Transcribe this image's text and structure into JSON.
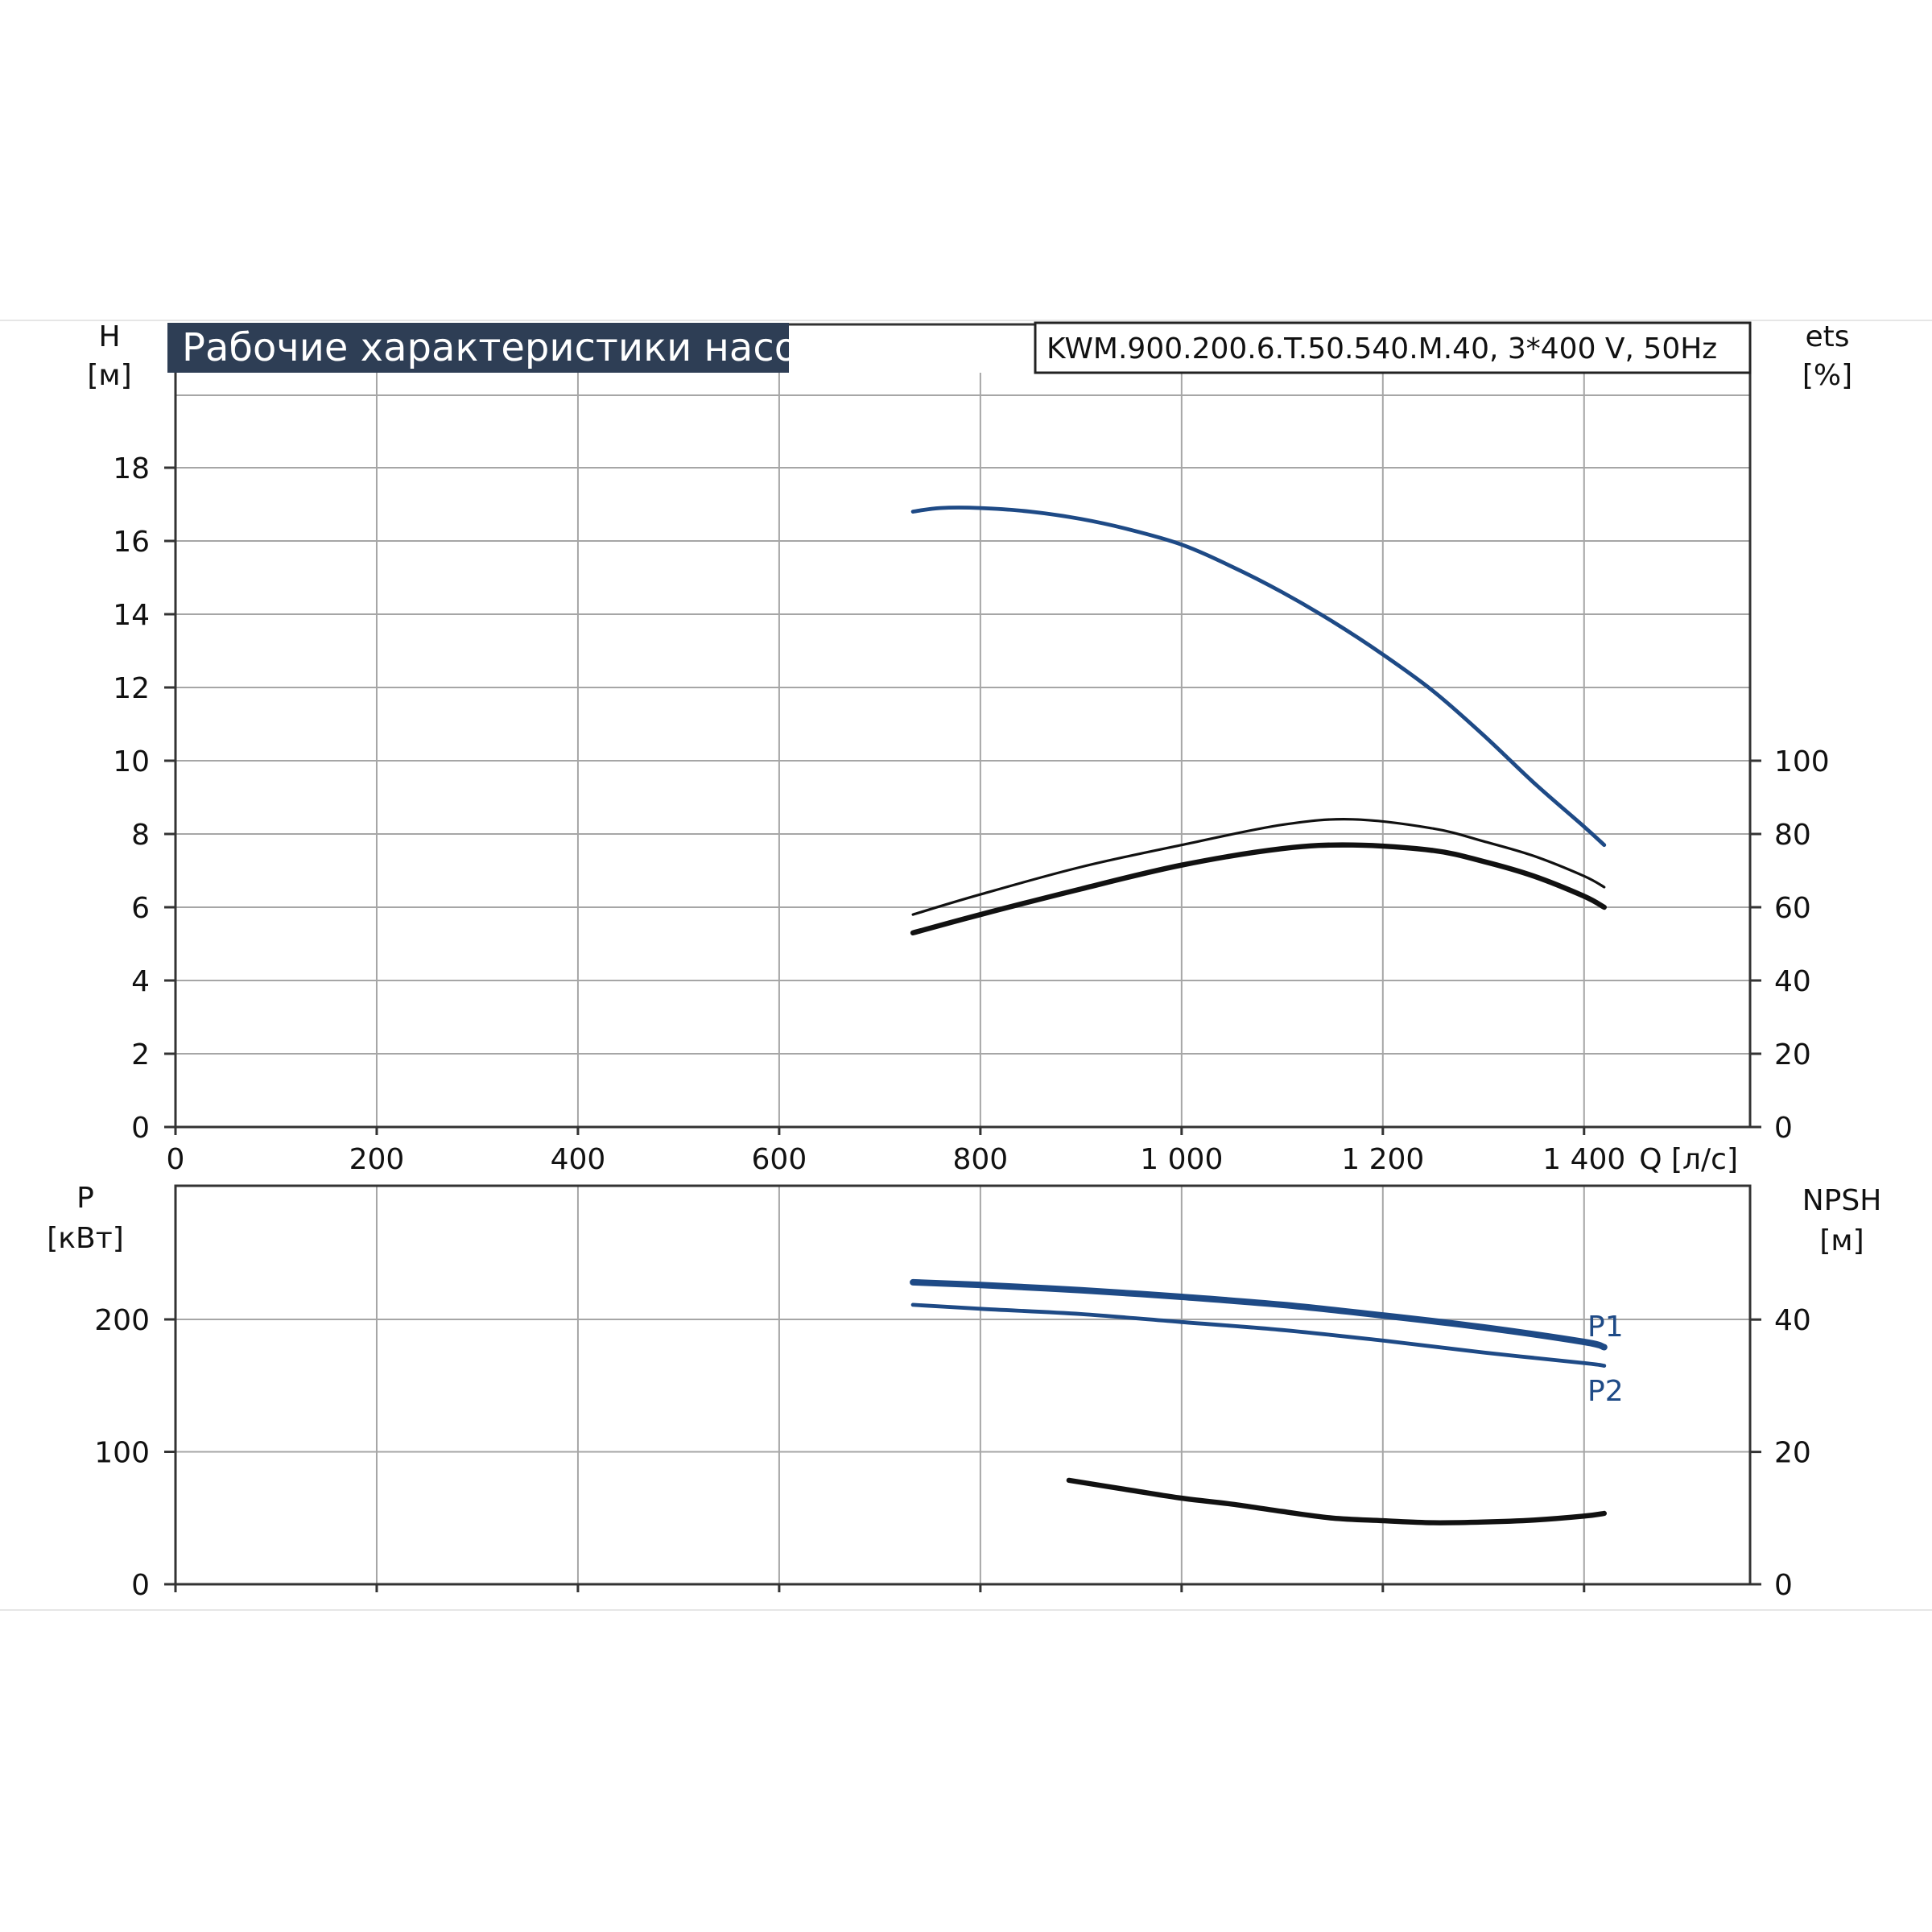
{
  "title": "Рабочие характеристики насоса",
  "model": "KWM.900.200.6.T.50.540.M.40, 3*400 V, 50Hz",
  "colors": {
    "background": "#ffffff",
    "title_bg": "#2e3e55",
    "grid": "#a6a6a6",
    "axis": "#333333",
    "blue": "#1e4a86",
    "black": "#111111"
  },
  "x_axis": {
    "label": "Q [л/с]",
    "min": 0,
    "max": 1400,
    "ticks": [
      0,
      200,
      400,
      600,
      800,
      1000,
      1200,
      1400
    ],
    "tick_labels": [
      "0",
      "200",
      "400",
      "600",
      "800",
      "1 000",
      "1 200",
      "1 400"
    ]
  },
  "top_left_axis": {
    "name": "H",
    "unit": "[м]",
    "ticks": [
      0,
      2,
      4,
      6,
      8,
      10,
      12,
      14,
      16,
      18
    ]
  },
  "top_right_axis": {
    "name": "ets",
    "unit": "[%]",
    "ticks": [
      0,
      20,
      40,
      60,
      80,
      100
    ]
  },
  "bottom_left_axis": {
    "name": "P",
    "unit": "[кВт]",
    "ticks": [
      0,
      100,
      200
    ]
  },
  "bottom_right_axis": {
    "name": "NPSH",
    "unit": "[м]",
    "ticks": [
      0,
      20,
      40
    ]
  },
  "curve_labels": {
    "p1": "P1",
    "p2": "P2"
  },
  "chart_data": [
    {
      "type": "line",
      "panel": "top",
      "xlabel": "Q [л/с]",
      "ylabel": "H [м]",
      "y2label": "ets [%]",
      "xlim": [
        0,
        1400
      ],
      "ylim": [
        0,
        20
      ],
      "y2lim": [
        0,
        135
      ],
      "grid": true,
      "series": [
        {
          "axis": "left",
          "color": "#1e4a86",
          "width": 3,
          "x": [
            733,
            760,
            800,
            850,
            900,
            950,
            1000,
            1050,
            1100,
            1150,
            1200,
            1250,
            1300,
            1350,
            1400,
            1420
          ],
          "y": [
            16.8,
            16.9,
            16.9,
            16.8,
            16.6,
            16.3,
            15.9,
            15.3,
            14.6,
            13.8,
            12.9,
            11.9,
            10.7,
            9.4,
            8.2,
            7.7
          ]
        },
        {
          "axis": "right",
          "color": "#111111",
          "width": 2,
          "x": [
            733,
            800,
            900,
            1000,
            1100,
            1170,
            1250,
            1300,
            1350,
            1400,
            1420
          ],
          "y": [
            58.0,
            63.5,
            71.0,
            77.0,
            82.5,
            84.0,
            81.5,
            78.0,
            74.0,
            68.5,
            65.5
          ]
        },
        {
          "axis": "right",
          "color": "#111111",
          "width": 4,
          "x": [
            733,
            800,
            900,
            1000,
            1100,
            1170,
            1250,
            1300,
            1350,
            1400,
            1420
          ],
          "y": [
            53.0,
            58.0,
            65.0,
            71.5,
            76.0,
            77.0,
            75.5,
            72.5,
            68.5,
            63.0,
            60.0
          ]
        }
      ]
    },
    {
      "type": "line",
      "panel": "bottom",
      "xlabel": "Q [л/с]",
      "ylabel": "P [кВт]",
      "y2label": "NPSH [м]",
      "xlim": [
        0,
        1400
      ],
      "ylim": [
        0,
        300
      ],
      "y2lim": [
        0,
        60
      ],
      "grid": true,
      "series": [
        {
          "name": "P1",
          "axis": "left",
          "color": "#1e4a86",
          "width": 5,
          "x": [
            733,
            800,
            900,
            1000,
            1100,
            1200,
            1300,
            1400,
            1420
          ],
          "y": [
            228,
            226,
            222,
            217,
            211,
            203,
            194,
            183,
            179
          ]
        },
        {
          "name": "P2",
          "axis": "left",
          "color": "#1e4a86",
          "width": 3,
          "x": [
            733,
            800,
            900,
            1000,
            1100,
            1200,
            1300,
            1400,
            1420
          ],
          "y": [
            211,
            208,
            204,
            198,
            192,
            184,
            175,
            167,
            165
          ]
        },
        {
          "axis": "right",
          "color": "#111111",
          "width": 4,
          "x": [
            888,
            950,
            1000,
            1050,
            1100,
            1150,
            1200,
            1250,
            1300,
            1350,
            1400,
            1420
          ],
          "y": [
            15.7,
            14.2,
            13.0,
            12.1,
            11.0,
            10.0,
            9.6,
            9.3,
            9.4,
            9.7,
            10.3,
            10.7
          ]
        }
      ]
    }
  ]
}
